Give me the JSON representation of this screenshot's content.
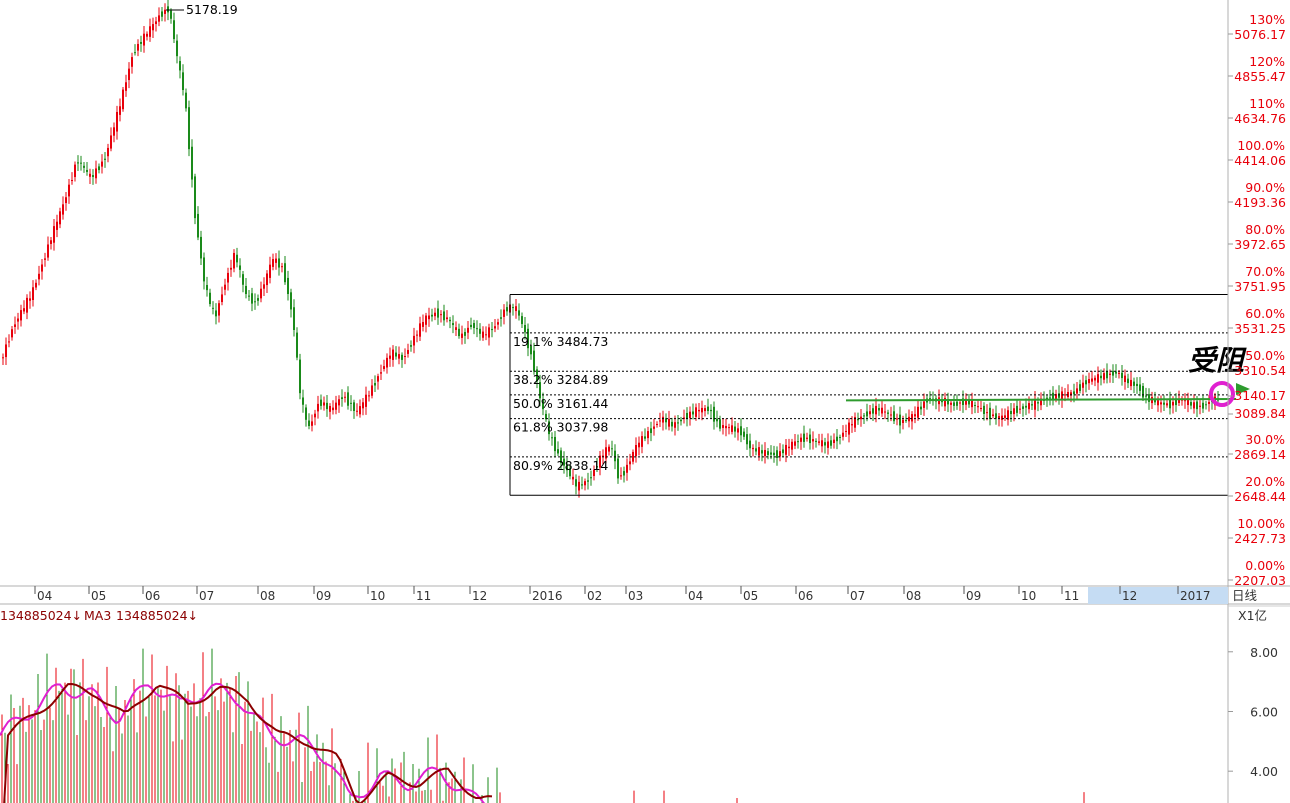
{
  "colors": {
    "up": "#e8000b",
    "down": "#1a8a1a",
    "axis_text": "#e8000b",
    "grid": "#808080",
    "trend": "#2e9b2e",
    "ring": "#e020d0",
    "ma_a": "#e020d0",
    "ma_b": "#8b0000",
    "highlight": "#c5dcf3"
  },
  "chart_data": [
    {
      "type": "candlestick",
      "title": "",
      "peak_label": "5178.19",
      "price_axis": {
        "ticks": [
          {
            "pct": "130%",
            "price": "5076.17"
          },
          {
            "pct": "120%",
            "price": "4855.47"
          },
          {
            "pct": "110%",
            "price": "4634.76"
          },
          {
            "pct": "100.0%",
            "price": "4414.06"
          },
          {
            "pct": "90.0%",
            "price": "4193.36"
          },
          {
            "pct": "80.0%",
            "price": "3972.65"
          },
          {
            "pct": "70.0%",
            "price": "3751.95"
          },
          {
            "pct": "60.0%",
            "price": "3531.25"
          },
          {
            "pct": "50.0%",
            "price": "3310.54"
          },
          {
            "pct": "",
            "price": "3140.17"
          },
          {
            "pct": "",
            "price": "3089.84"
          },
          {
            "pct": "30.0%",
            "price": "2869.14"
          },
          {
            "pct": "20.0%",
            "price": "2648.44"
          },
          {
            "pct": "10.00%",
            "price": "2427.73"
          },
          {
            "pct": "0.00%",
            "price": "2207.03"
          }
        ]
      },
      "fib_levels": [
        {
          "label": "19.1% 3484.73",
          "value": 3484.73,
          "style": "dotted"
        },
        {
          "label": "38.2% 3284.89",
          "value": 3284.89,
          "style": "dotted"
        },
        {
          "label": "50.0% 3161.44",
          "value": 3161.44,
          "style": "dotted"
        },
        {
          "label": "61.8% 3037.98",
          "value": 3037.98,
          "style": "dotted"
        },
        {
          "label": "80.9% 2838.14",
          "value": 2838.14,
          "style": "dotted"
        }
      ],
      "fib_high": 3684.57,
      "fib_low": 2638.3,
      "time_axis": [
        "04",
        "05",
        "06",
        "07",
        "08",
        "09",
        "10",
        "11",
        "12",
        "2016",
        "02",
        "03",
        "04",
        "05",
        "06",
        "07",
        "08",
        "09",
        "10",
        "11",
        "12",
        "2017"
      ],
      "period_label": "日线",
      "annotation": "受阻",
      "trend_line": {
        "from_value": 3133,
        "to_value": 3140
      },
      "price_range": [
        2207.03,
        5178.19
      ]
    },
    {
      "type": "bar",
      "title": "",
      "legend_volume": "134885024↓",
      "legend_ma": "MA3",
      "legend_ma_value": "134885024↓",
      "unit_label": "X1亿",
      "ticks": [
        "8.00",
        "6.00",
        "4.00"
      ],
      "ylim": [
        2.8,
        9.4
      ]
    }
  ]
}
